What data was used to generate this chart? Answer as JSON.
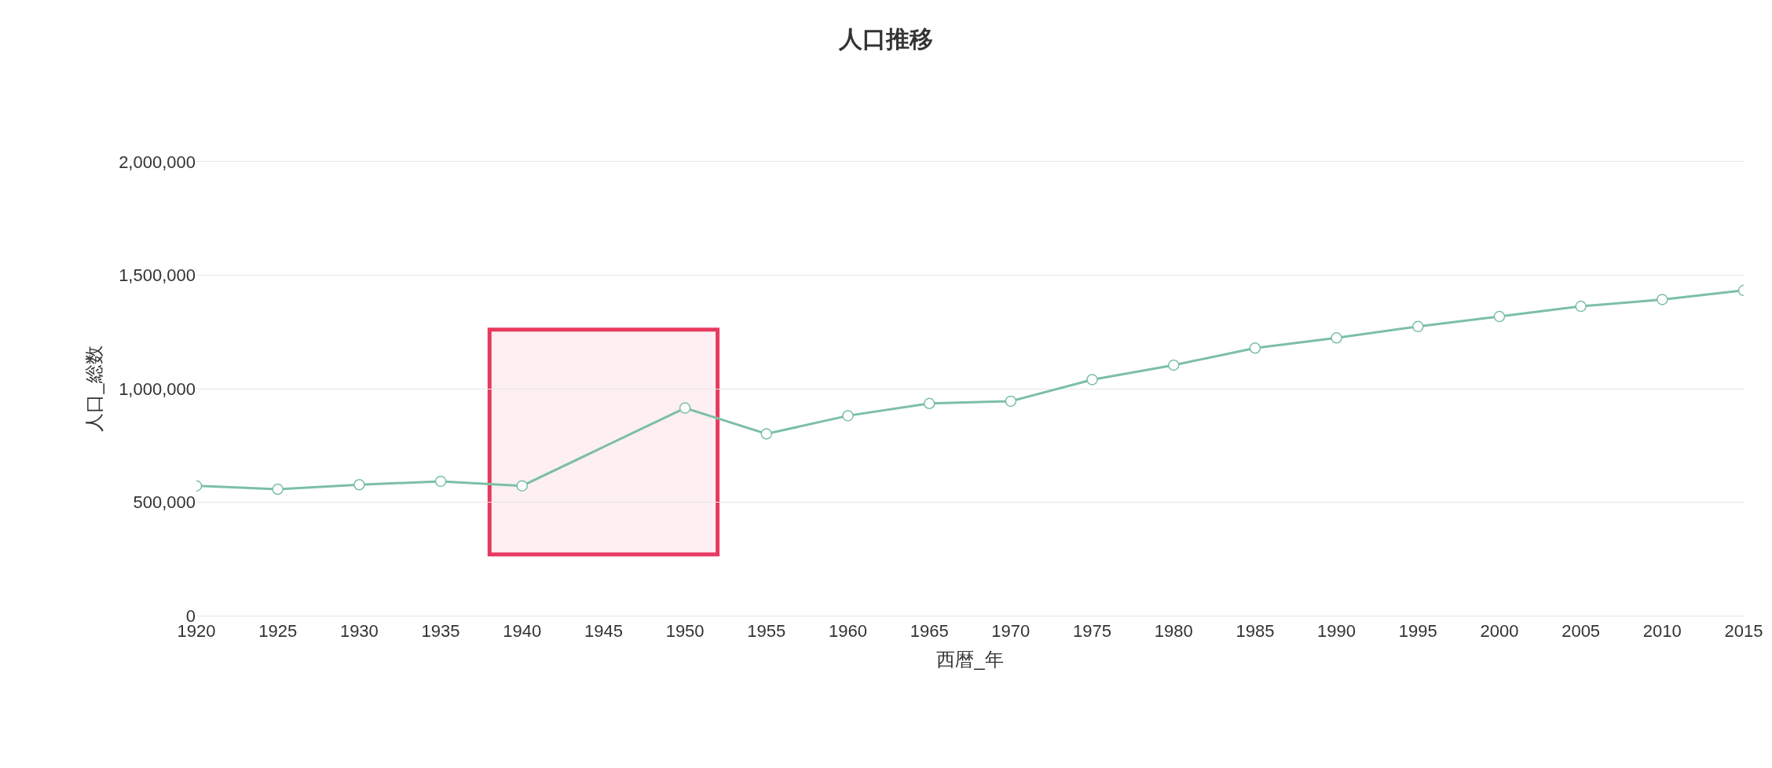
{
  "chart_data": {
    "type": "line",
    "title": "人口推移",
    "xlabel": "西暦_年",
    "ylabel": "人口_総数",
    "x": [
      1920,
      1925,
      1930,
      1935,
      1940,
      1950,
      1955,
      1960,
      1965,
      1970,
      1975,
      1980,
      1985,
      1990,
      1995,
      2000,
      2005,
      2010,
      2015
    ],
    "series": [
      {
        "color": "#7cbfa6",
        "values": [
          572000,
          557000,
          577000,
          592000,
          572000,
          915000,
          801000,
          881000,
          935000,
          945000,
          1040000,
          1104000,
          1179000,
          1224000,
          1274000,
          1318000,
          1363000,
          1393000,
          1433000
        ]
      }
    ],
    "xlim": [
      1920,
      2015
    ],
    "xticks": [
      1920,
      1925,
      1930,
      1935,
      1940,
      1945,
      1950,
      1955,
      1960,
      1965,
      1970,
      1975,
      1980,
      1985,
      1990,
      1995,
      2000,
      2005,
      2010,
      2015
    ],
    "ylim": [
      0,
      2000000
    ],
    "yticks": [
      {
        "value": 0,
        "label": "0"
      },
      {
        "value": 500000,
        "label": "500,000"
      },
      {
        "value": 1000000,
        "label": "1,000,000"
      },
      {
        "value": 1500000,
        "label": "1,500,000"
      },
      {
        "value": 2000000,
        "label": "2,000,000"
      }
    ],
    "bands": [
      {
        "axis": "x",
        "from": 1938,
        "to": 1952,
        "color": "#e8395f"
      }
    ],
    "grid": "y",
    "marker": "circle",
    "line_style": "solid"
  }
}
